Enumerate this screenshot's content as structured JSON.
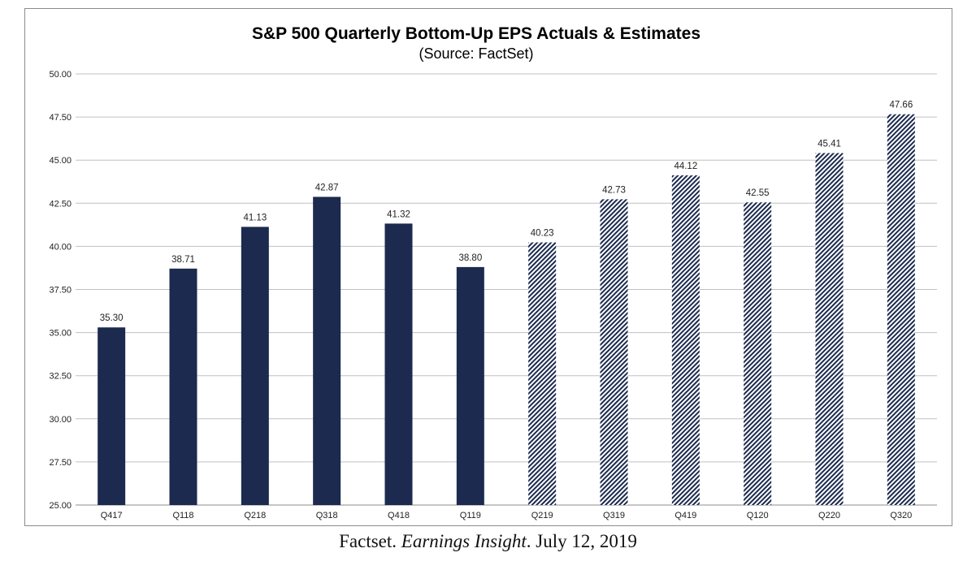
{
  "chart_data": {
    "type": "bar",
    "title": "S&P 500 Quarterly Bottom-Up EPS Actuals & Estimates",
    "subtitle": "(Source: FactSet)",
    "xlabel": "",
    "ylabel": "",
    "ylim": [
      25,
      50
    ],
    "yticks": [
      "25.00",
      "27.50",
      "30.00",
      "32.50",
      "35.00",
      "37.50",
      "40.00",
      "42.50",
      "45.00",
      "47.50",
      "50.00"
    ],
    "grid": true,
    "categories": [
      "Q417",
      "Q118",
      "Q218",
      "Q318",
      "Q418",
      "Q119",
      "Q219",
      "Q319",
      "Q419",
      "Q120",
      "Q220",
      "Q320"
    ],
    "values": [
      35.3,
      38.71,
      41.13,
      42.87,
      41.32,
      38.8,
      40.23,
      42.73,
      44.12,
      42.55,
      45.41,
      47.66
    ],
    "labels": [
      "35.30",
      "38.71",
      "41.13",
      "42.87",
      "41.32",
      "38.80",
      "40.23",
      "42.73",
      "44.12",
      "42.55",
      "45.41",
      "47.66"
    ],
    "styles": [
      "actual",
      "actual",
      "actual",
      "actual",
      "actual",
      "actual",
      "estimate",
      "estimate",
      "estimate",
      "estimate",
      "estimate",
      "estimate"
    ],
    "colors": {
      "actual": "#1b2a4e",
      "estimate": "#1b2a4e",
      "grid": "#c0c0c0",
      "axis": "#8c8c8c"
    }
  },
  "caption": {
    "source": "Factset. ",
    "publication": "Earnings Insight",
    "date": ". July 12, 2019"
  }
}
